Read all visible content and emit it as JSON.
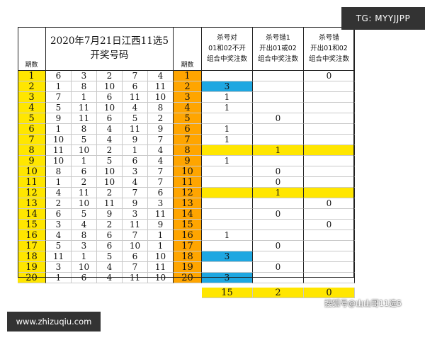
{
  "badges": {
    "tg": "TG: MYYJJPP",
    "site": "www.zhizuqiu.com",
    "watermark": "搜狐号@山山哥11选5"
  },
  "header": {
    "stub_left": "期数",
    "title_line1": "2020年7月21日江西11选5",
    "title_line2": "开奖号码",
    "stub_right": "期数",
    "col1": [
      "杀号对",
      "01和02不开",
      "组合中奖注数"
    ],
    "col2": [
      "杀号错1",
      "开出01或02",
      "组合中奖注数"
    ],
    "col3": [
      "杀号错",
      "开出01和02",
      "组合中奖注数"
    ]
  },
  "rows": [
    {
      "n": "1",
      "d": [
        "6",
        "3",
        "2",
        "7",
        "4"
      ],
      "a": "",
      "b": "",
      "c": "0"
    },
    {
      "n": "2",
      "d": [
        "1",
        "8",
        "10",
        "6",
        "11"
      ],
      "a": "3",
      "b": "",
      "c": ""
    },
    {
      "n": "3",
      "d": [
        "7",
        "1",
        "6",
        "11",
        "10"
      ],
      "a": "1",
      "b": "",
      "c": ""
    },
    {
      "n": "4",
      "d": [
        "5",
        "11",
        "10",
        "4",
        "8"
      ],
      "a": "1",
      "b": "",
      "c": ""
    },
    {
      "n": "5",
      "d": [
        "9",
        "11",
        "6",
        "5",
        "2"
      ],
      "a": "",
      "b": "0",
      "c": ""
    },
    {
      "n": "6",
      "d": [
        "1",
        "8",
        "4",
        "11",
        "9"
      ],
      "a": "1",
      "b": "",
      "c": ""
    },
    {
      "n": "7",
      "d": [
        "10",
        "5",
        "4",
        "9",
        "7"
      ],
      "a": "1",
      "b": "",
      "c": ""
    },
    {
      "n": "8",
      "d": [
        "11",
        "10",
        "2",
        "1",
        "4"
      ],
      "a": "",
      "b": "1",
      "c": ""
    },
    {
      "n": "9",
      "d": [
        "10",
        "1",
        "5",
        "6",
        "4"
      ],
      "a": "1",
      "b": "",
      "c": ""
    },
    {
      "n": "10",
      "d": [
        "8",
        "6",
        "10",
        "3",
        "7"
      ],
      "a": "",
      "b": "0",
      "c": ""
    },
    {
      "n": "11",
      "d": [
        "1",
        "2",
        "10",
        "4",
        "7"
      ],
      "a": "",
      "b": "0",
      "c": ""
    },
    {
      "n": "12",
      "d": [
        "4",
        "11",
        "2",
        "7",
        "6"
      ],
      "a": "",
      "b": "1",
      "c": ""
    },
    {
      "n": "13",
      "d": [
        "2",
        "10",
        "11",
        "9",
        "3"
      ],
      "a": "",
      "b": "",
      "c": "0"
    },
    {
      "n": "14",
      "d": [
        "6",
        "5",
        "9",
        "3",
        "11"
      ],
      "a": "",
      "b": "0",
      "c": ""
    },
    {
      "n": "15",
      "d": [
        "3",
        "4",
        "2",
        "11",
        "9"
      ],
      "a": "",
      "b": "",
      "c": "0"
    },
    {
      "n": "16",
      "d": [
        "4",
        "8",
        "6",
        "7",
        "1"
      ],
      "a": "1",
      "b": "",
      "c": ""
    },
    {
      "n": "17",
      "d": [
        "5",
        "3",
        "6",
        "10",
        "1"
      ],
      "a": "",
      "b": "0",
      "c": ""
    },
    {
      "n": "18",
      "d": [
        "11",
        "1",
        "5",
        "6",
        "10"
      ],
      "a": "3",
      "b": "",
      "c": ""
    },
    {
      "n": "19",
      "d": [
        "3",
        "10",
        "4",
        "7",
        "11"
      ],
      "a": "",
      "b": "0",
      "c": ""
    },
    {
      "n": "20",
      "d": [
        "1",
        "6",
        "4",
        "11",
        "10"
      ],
      "a": "3",
      "b": "",
      "c": ""
    }
  ],
  "totals": {
    "a": "15",
    "b": "2",
    "c": "0"
  },
  "highlight_colors": {
    "yellow": "#ffe600",
    "orange": "#ffa500",
    "blue": "#1ea7e1"
  }
}
